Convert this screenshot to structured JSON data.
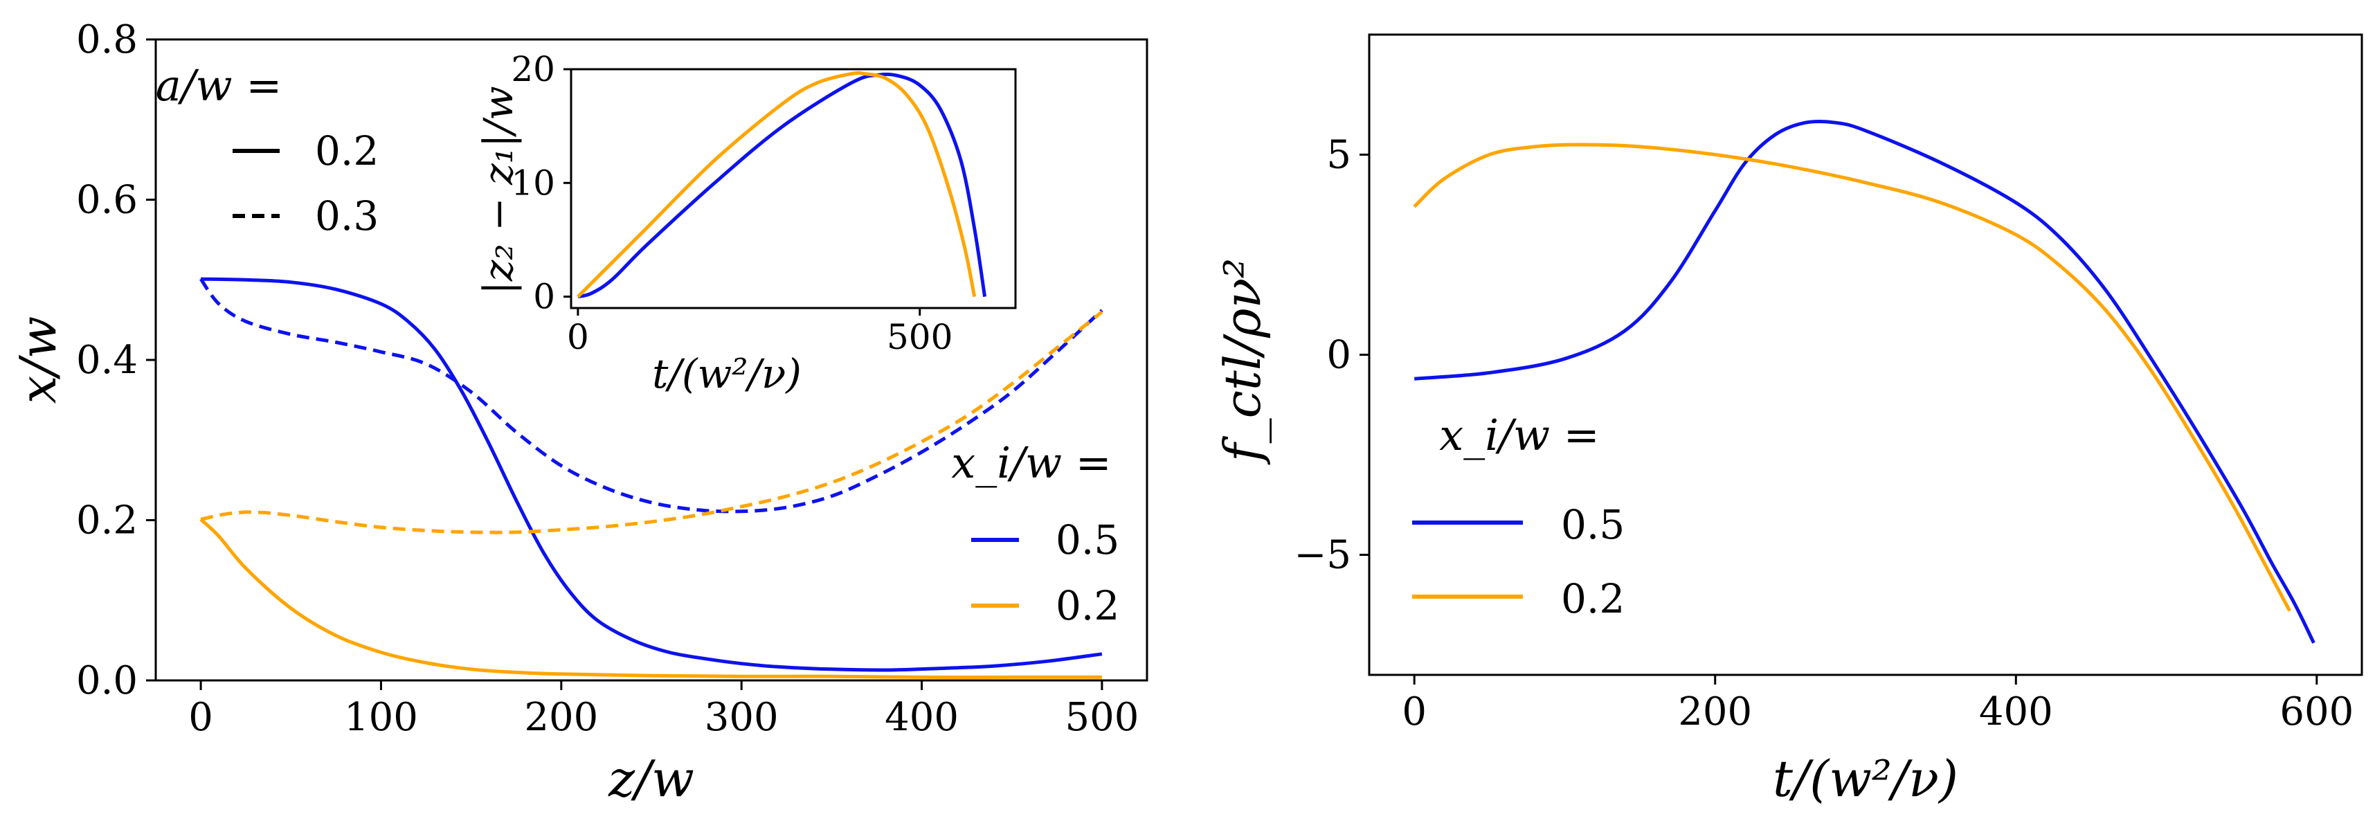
{
  "colors": {
    "blue": "#0d12ee",
    "orange": "#ffa500"
  },
  "chart_data": [
    {
      "id": "left",
      "type": "line",
      "xlabel": "z/w",
      "ylabel": "x/w",
      "xlim": [
        -25,
        525
      ],
      "ylim": [
        0,
        0.8
      ],
      "xticks": [
        0,
        100,
        200,
        300,
        400,
        500
      ],
      "yticks": [
        0.0,
        0.2,
        0.4,
        0.6,
        0.8
      ],
      "xtick_labels": [
        "0",
        "100",
        "200",
        "300",
        "400",
        "500"
      ],
      "ytick_labels": [
        "0.0",
        "0.2",
        "0.4",
        "0.6",
        "0.8"
      ],
      "legend_style": {
        "title": "a/w =",
        "position": "top-left",
        "entries": [
          {
            "label": "0.2",
            "dash": "solid"
          },
          {
            "label": "0.3",
            "dash": "dashed"
          }
        ]
      },
      "legend_color": {
        "title": "x_i/w =",
        "position": "center-right",
        "entries": [
          {
            "label": "0.5",
            "color": "#0d12ee"
          },
          {
            "label": "0.2",
            "color": "#ffa500"
          }
        ]
      },
      "series": [
        {
          "name": "x_i/w=0.5, a/w=0.2",
          "color": "#0d12ee",
          "dash": "solid",
          "x": [
            0,
            25,
            50,
            75,
            100,
            115,
            130,
            145,
            160,
            175,
            190,
            205,
            220,
            240,
            260,
            280,
            300,
            320,
            350,
            380,
            410,
            440,
            470,
            500
          ],
          "y": [
            0.501,
            0.5,
            0.497,
            0.488,
            0.47,
            0.448,
            0.413,
            0.36,
            0.295,
            0.225,
            0.16,
            0.11,
            0.075,
            0.05,
            0.035,
            0.027,
            0.021,
            0.017,
            0.014,
            0.013,
            0.015,
            0.018,
            0.024,
            0.033
          ]
        },
        {
          "name": "x_i/w=0.5, a/w=0.3",
          "color": "#0d12ee",
          "dash": "dashed",
          "x": [
            0,
            10,
            25,
            50,
            75,
            100,
            125,
            150,
            175,
            200,
            225,
            250,
            275,
            300,
            325,
            350,
            375,
            400,
            425,
            450,
            475,
            500
          ],
          "y": [
            0.501,
            0.47,
            0.448,
            0.432,
            0.422,
            0.41,
            0.395,
            0.36,
            0.31,
            0.268,
            0.24,
            0.222,
            0.213,
            0.211,
            0.216,
            0.23,
            0.255,
            0.285,
            0.32,
            0.36,
            0.41,
            0.462
          ]
        },
        {
          "name": "x_i/w=0.2, a/w=0.2",
          "color": "#ffa500",
          "dash": "solid",
          "x": [
            0,
            10,
            25,
            50,
            75,
            100,
            125,
            150,
            175,
            200,
            250,
            300,
            350,
            400,
            450,
            500
          ],
          "y": [
            0.201,
            0.18,
            0.14,
            0.09,
            0.056,
            0.035,
            0.022,
            0.014,
            0.01,
            0.008,
            0.006,
            0.005,
            0.005,
            0.004,
            0.004,
            0.004
          ]
        },
        {
          "name": "x_i/w=0.2, a/w=0.3",
          "color": "#ffa500",
          "dash": "dashed",
          "x": [
            0,
            15,
            30,
            50,
            75,
            100,
            125,
            150,
            175,
            200,
            225,
            250,
            275,
            300,
            325,
            350,
            375,
            400,
            425,
            450,
            475,
            500
          ],
          "y": [
            0.201,
            0.208,
            0.21,
            0.206,
            0.198,
            0.191,
            0.187,
            0.185,
            0.185,
            0.188,
            0.192,
            0.198,
            0.206,
            0.217,
            0.23,
            0.247,
            0.27,
            0.298,
            0.33,
            0.37,
            0.415,
            0.46
          ]
        }
      ]
    },
    {
      "id": "inset",
      "type": "line",
      "xlabel": "t/(w²/ν)",
      "ylabel": "|z₂ − z₁|/w",
      "xlim": [
        -10,
        640
      ],
      "ylim": [
        -1,
        20
      ],
      "xticks": [
        0,
        500
      ],
      "yticks": [
        0,
        10,
        20
      ],
      "xtick_labels": [
        "0",
        "500"
      ],
      "ytick_labels": [
        "0",
        "10",
        "20"
      ],
      "series": [
        {
          "name": "x_i/w=0.5",
          "color": "#0d12ee",
          "dash": "solid",
          "x": [
            0,
            20,
            50,
            100,
            200,
            300,
            400,
            440,
            470,
            500,
            530,
            560,
            580,
            595
          ],
          "y": [
            0,
            0.3,
            1.5,
            4.5,
            10,
            15,
            18.8,
            19.5,
            19.4,
            18.6,
            16.5,
            12,
            6,
            0
          ]
        },
        {
          "name": "x_i/w=0.2",
          "color": "#ffa500",
          "dash": "solid",
          "x": [
            0,
            50,
            100,
            200,
            300,
            350,
            400,
            420,
            450,
            480,
            510,
            540,
            565,
            580
          ],
          "y": [
            0,
            3,
            6,
            12,
            17,
            18.8,
            19.6,
            19.6,
            19.2,
            17.8,
            15,
            10,
            4.5,
            0
          ]
        }
      ]
    },
    {
      "id": "right",
      "type": "line",
      "xlabel": "t/(w²/ν)",
      "ylabel": "f_ctl/ρν²",
      "xlim": [
        -30,
        630
      ],
      "ylim": [
        -8,
        8
      ],
      "xticks": [
        0,
        200,
        400,
        600
      ],
      "yticks": [
        -5,
        0,
        5
      ],
      "xtick_labels": [
        "0",
        "200",
        "400",
        "600"
      ],
      "ytick_labels": [
        "−5",
        "0",
        "5"
      ],
      "legend": {
        "title": "x_i/w =",
        "position": "center-left",
        "entries": [
          {
            "label": "0.5",
            "color": "#0d12ee"
          },
          {
            "label": "0.2",
            "color": "#ffa500"
          }
        ]
      },
      "series": [
        {
          "name": "x_i/w=0.5",
          "color": "#0d12ee",
          "dash": "solid",
          "x": [
            0,
            50,
            100,
            140,
            170,
            200,
            220,
            240,
            260,
            280,
            300,
            350,
            400,
            430,
            460,
            490,
            520,
            550,
            570,
            585,
            598
          ],
          "y": [
            -0.6,
            -0.45,
            -0.1,
            0.6,
            1.8,
            3.6,
            4.8,
            5.5,
            5.8,
            5.8,
            5.6,
            4.8,
            3.8,
            2.9,
            1.6,
            -0.1,
            -1.9,
            -3.8,
            -5.2,
            -6.2,
            -7.2
          ]
        },
        {
          "name": "x_i/w=0.2",
          "color": "#ffa500",
          "dash": "solid",
          "x": [
            0,
            20,
            50,
            80,
            110,
            150,
            200,
            250,
            300,
            350,
            400,
            430,
            460,
            490,
            520,
            545,
            565,
            582
          ],
          "y": [
            3.7,
            4.4,
            5.0,
            5.2,
            5.25,
            5.2,
            5.0,
            4.7,
            4.3,
            3.8,
            3.0,
            2.2,
            1.1,
            -0.4,
            -2.2,
            -3.8,
            -5.2,
            -6.4
          ]
        }
      ]
    }
  ]
}
